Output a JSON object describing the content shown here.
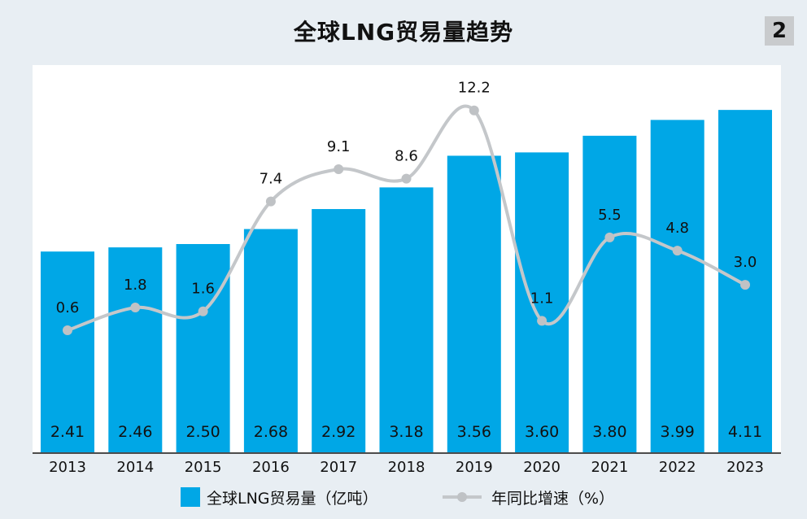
{
  "title": "全球LNG贸易量趋势",
  "figure_number": "2",
  "colors": {
    "bar": "#00a7e6",
    "line": "#c4c7ca",
    "marker": "#bfc2c5",
    "background": "#e8eef3",
    "plot_background": "#ffffff"
  },
  "chart_data": {
    "type": "bar",
    "title": "全球LNG贸易量趋势",
    "categories": [
      "2013",
      "2014",
      "2015",
      "2016",
      "2017",
      "2018",
      "2019",
      "2020",
      "2021",
      "2022",
      "2023"
    ],
    "series": [
      {
        "name": "全球LNG贸易量（亿吨）",
        "type": "bar",
        "values": [
          2.41,
          2.46,
          2.5,
          2.68,
          2.92,
          3.18,
          3.56,
          3.6,
          3.8,
          3.99,
          4.11
        ],
        "labels": [
          "2.41",
          "2.46",
          "2.50",
          "2.68",
          "2.92",
          "3.18",
          "3.56",
          "3.60",
          "3.80",
          "3.99",
          "4.11"
        ]
      },
      {
        "name": "年同比增速（%）",
        "type": "line",
        "values": [
          0.6,
          1.8,
          1.6,
          7.4,
          9.1,
          8.6,
          12.2,
          1.1,
          5.5,
          4.8,
          3.0
        ],
        "labels": [
          "0.6",
          "1.8",
          "1.6",
          "7.4",
          "9.1",
          "8.6",
          "12.2",
          "1.1",
          "5.5",
          "4.8",
          "3.0"
        ]
      }
    ],
    "legend_position": "bottom",
    "grid": false
  },
  "legend": {
    "bars_label": "全球LNG贸易量（亿吨）",
    "line_label": "年同比增速（%）"
  }
}
